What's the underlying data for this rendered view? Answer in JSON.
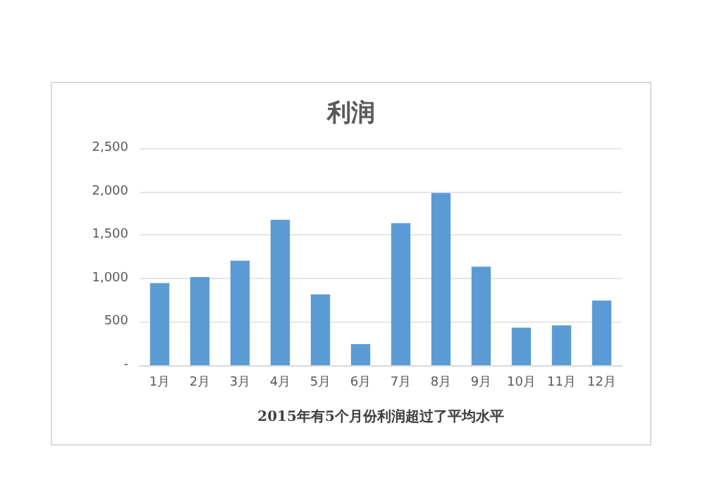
{
  "chart_data": {
    "type": "bar",
    "title": "利润",
    "xlabel": "2015年有5个月份利润超过了平均水平",
    "categories": [
      "1月",
      "2月",
      "3月",
      "4月",
      "5月",
      "6月",
      "7月",
      "8月",
      "9月",
      "10月",
      "11月",
      "12月"
    ],
    "values": [
      945,
      1015,
      1204,
      1674,
      815,
      243,
      1636,
      1982,
      1134,
      432,
      459,
      745
    ],
    "color": "#5b9bd5",
    "ylim": [
      0,
      2500
    ],
    "yticks": [
      {
        "value": 0,
        "label": "-"
      },
      {
        "value": 500,
        "label": "500"
      },
      {
        "value": 1000,
        "label": "1,000"
      },
      {
        "value": 1500,
        "label": "1,500"
      },
      {
        "value": 2000,
        "label": "2,000"
      },
      {
        "value": 2500,
        "label": "2,500"
      }
    ],
    "grid": "y"
  }
}
